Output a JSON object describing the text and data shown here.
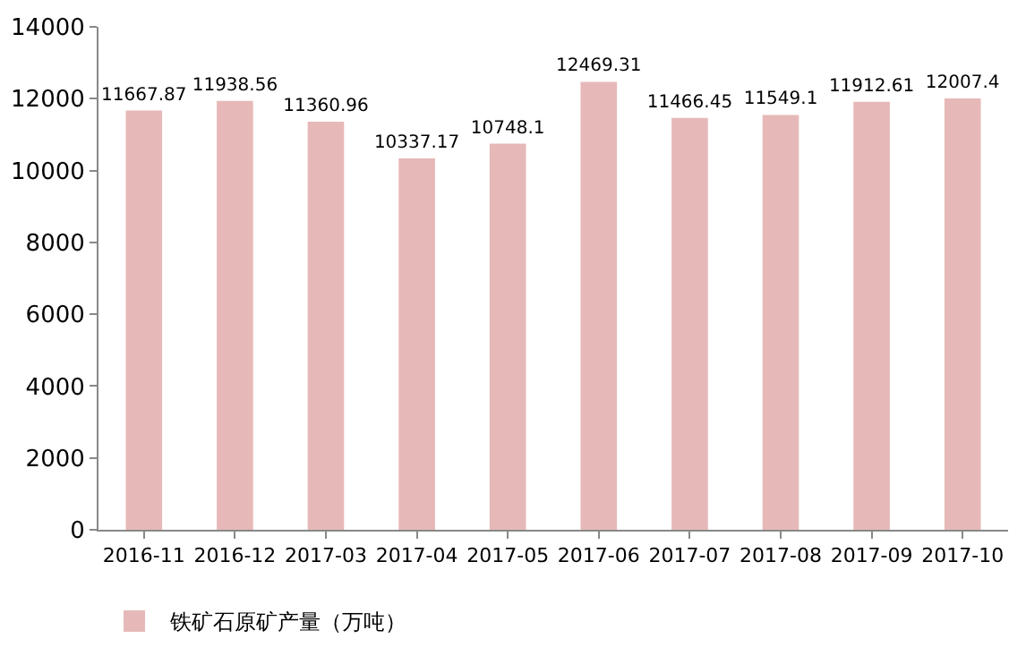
{
  "chart_data": {
    "type": "bar",
    "categories": [
      "2016-11",
      "2016-12",
      "2017-03",
      "2017-04",
      "2017-05",
      "2017-06",
      "2017-07",
      "2017-08",
      "2017-09",
      "2017-10"
    ],
    "series": [
      {
        "name": "铁矿石原矿产量（万吨）",
        "color": "#e6b9b8",
        "values": [
          11667.87,
          11938.56,
          11360.96,
          10337.17,
          10748.1,
          12469.31,
          11466.45,
          11549.1,
          11912.61,
          12007.4
        ]
      }
    ],
    "ylim": [
      0,
      14000
    ],
    "yticks": [
      0,
      2000,
      4000,
      6000,
      8000,
      10000,
      12000,
      14000
    ],
    "grid": false,
    "legend": "bottom",
    "data_labels": true
  }
}
